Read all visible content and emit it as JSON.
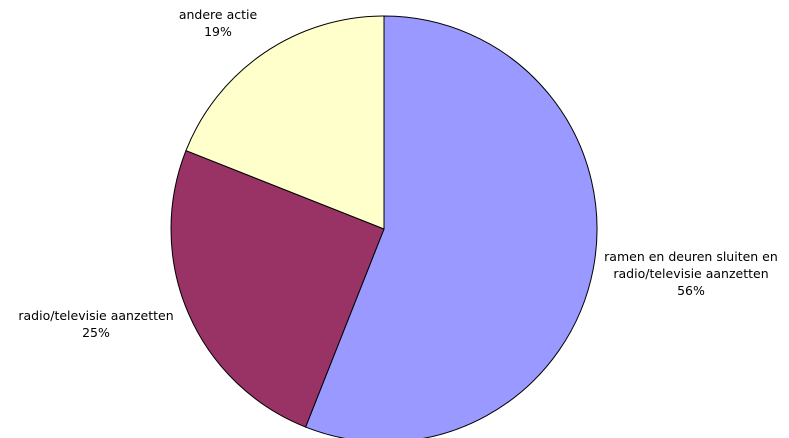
{
  "chart_data": {
    "type": "pie",
    "title": "",
    "start_angle_deg": 0,
    "direction": "clockwise",
    "stroke_color": "#000000",
    "slices": [
      {
        "label_lines": [
          "ramen en deuren sluiten en",
          "radio/televisie aanzetten"
        ],
        "value": 56,
        "percent_label": "56%",
        "color": "#9999ff"
      },
      {
        "label_lines": [
          "radio/televisie aanzetten"
        ],
        "value": 25,
        "percent_label": "25%",
        "color": "#993366"
      },
      {
        "label_lines": [
          "andere actie"
        ],
        "value": 19,
        "percent_label": "19%",
        "color": "#ffffcc"
      }
    ]
  }
}
